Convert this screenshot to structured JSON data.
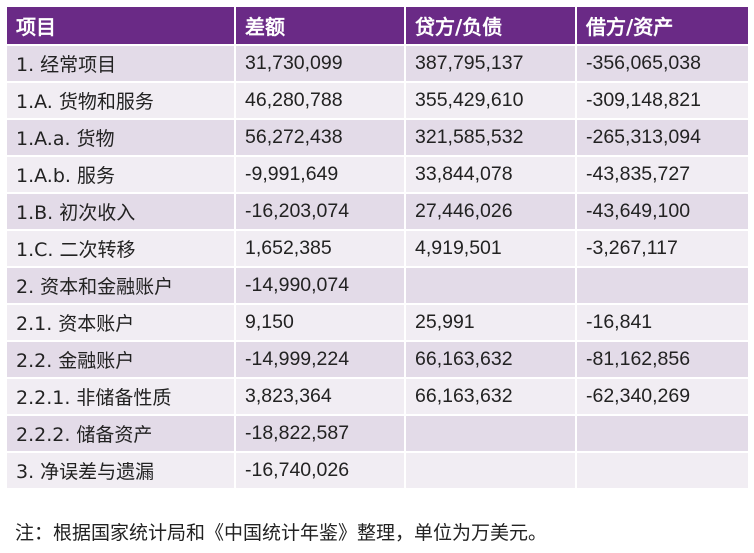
{
  "table": {
    "headers": [
      "项目",
      "差额",
      "贷方/负债",
      "借方/资产"
    ],
    "rows": [
      [
        "1. 经常项目",
        "31,730,099",
        "387,795,137",
        "-356,065,038"
      ],
      [
        "1.A. 货物和服务",
        "46,280,788",
        "355,429,610",
        "-309,148,821"
      ],
      [
        "1.A.a. 货物",
        "56,272,438",
        "321,585,532",
        "-265,313,094"
      ],
      [
        "1.A.b. 服务",
        "-9,991,649",
        "33,844,078",
        "-43,835,727"
      ],
      [
        "1.B. 初次收入",
        "-16,203,074",
        "27,446,026",
        "-43,649,100"
      ],
      [
        "1.C. 二次转移",
        "1,652,385",
        "4,919,501",
        "-3,267,117"
      ],
      [
        "2. 资本和金融账户",
        "-14,990,074",
        "",
        ""
      ],
      [
        "2.1. 资本账户",
        "9,150",
        "25,991",
        "-16,841"
      ],
      [
        "2.2. 金融账户",
        "-14,999,224",
        "66,163,632",
        "-81,162,856"
      ],
      [
        "2.2.1. 非储备性质",
        "3,823,364",
        "66,163,632",
        "-62,340,269"
      ],
      [
        "2.2.2. 储备资产",
        "-18,822,587",
        "",
        ""
      ],
      [
        "3. 净误差与遗漏",
        "-16,740,026",
        "",
        ""
      ]
    ]
  },
  "note": "注：根据国家统计局和《中国统计年鉴》整理，单位为万美元。"
}
